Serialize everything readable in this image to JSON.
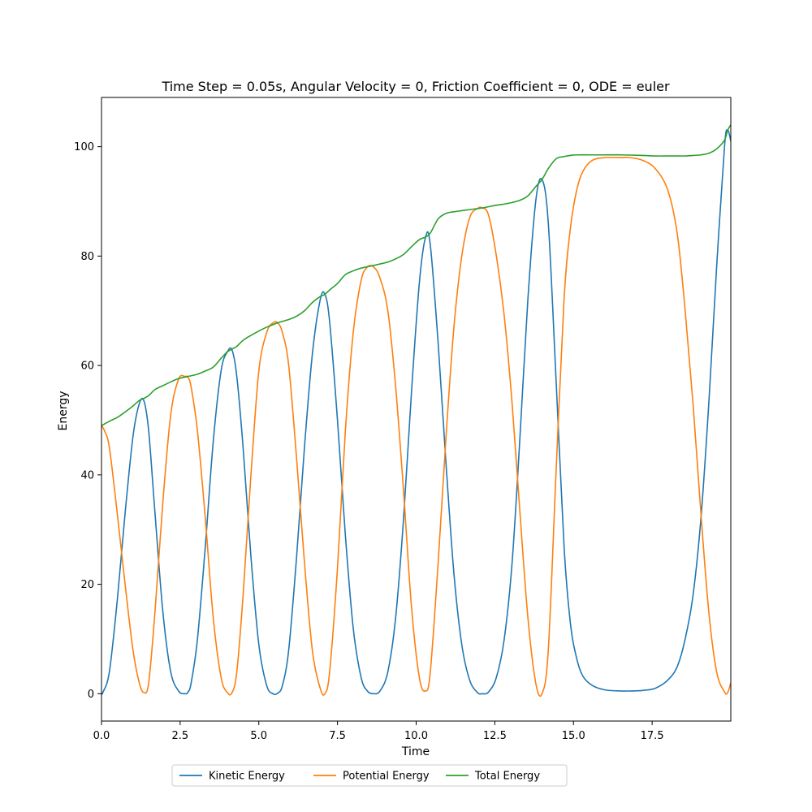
{
  "chart_data": {
    "type": "line",
    "title": "Time Step = 0.05s, Angular Velocity = 0, Friction Coefficient = 0, ODE = euler",
    "xlabel": "Time",
    "ylabel": "Energy",
    "xlim": [
      0,
      20
    ],
    "ylim": [
      -5,
      109
    ],
    "xticks": [
      0.0,
      2.5,
      5.0,
      7.5,
      10.0,
      12.5,
      15.0,
      17.5
    ],
    "xtick_labels": [
      "0.0",
      "2.5",
      "5.0",
      "7.5",
      "10.0",
      "12.5",
      "15.0",
      "17.5"
    ],
    "yticks": [
      0,
      20,
      40,
      60,
      80,
      100
    ],
    "ytick_labels": [
      "0",
      "20",
      "40",
      "60",
      "80",
      "100"
    ],
    "grid": false,
    "legend_position": "bottom-center outside",
    "series": [
      {
        "name": "Kinetic Energy",
        "color": "#1f77b4",
        "x": [
          0.0,
          0.05,
          0.25,
          0.5,
          0.75,
          1.0,
          1.2,
          1.35,
          1.5,
          1.7,
          1.95,
          2.2,
          2.45,
          2.65,
          2.75,
          2.85,
          3.05,
          3.3,
          3.55,
          3.8,
          4.0,
          4.15,
          4.3,
          4.5,
          4.75,
          5.0,
          5.25,
          5.45,
          5.6,
          5.75,
          5.95,
          6.2,
          6.45,
          6.7,
          6.95,
          7.1,
          7.25,
          7.5,
          7.75,
          8.0,
          8.25,
          8.45,
          8.65,
          8.85,
          9.1,
          9.35,
          9.6,
          9.85,
          10.1,
          10.3,
          10.45,
          10.7,
          10.95,
          11.2,
          11.45,
          11.7,
          11.95,
          12.1,
          12.3,
          12.55,
          12.8,
          13.05,
          13.3,
          13.55,
          13.8,
          14.0,
          14.2,
          14.45,
          14.7,
          14.9,
          15.1,
          15.3,
          15.6,
          16.0,
          16.5,
          16.8,
          17.2,
          17.6,
          18.0,
          18.3,
          18.55,
          18.8,
          19.05,
          19.3,
          19.55,
          19.8,
          19.9,
          20.0
        ],
        "y": [
          0,
          0.3,
          4,
          17,
          33,
          47,
          53,
          53.5,
          48,
          33,
          15,
          4,
          0.5,
          0,
          0.3,
          2,
          10,
          27,
          46,
          59,
          62.5,
          62.8,
          58,
          45,
          25,
          9,
          1.5,
          0,
          0.1,
          1.5,
          8,
          25,
          45,
          62,
          72,
          73,
          68,
          50,
          29,
          12,
          3,
          0.5,
          0,
          0.5,
          4,
          14,
          32,
          55,
          75,
          83.5,
          82,
          64,
          42,
          22,
          9,
          2.5,
          0.2,
          0,
          0.3,
          3,
          10,
          24,
          47,
          72,
          90,
          94,
          86,
          57,
          27,
          13,
          6.5,
          3.2,
          1.5,
          0.7,
          0.5,
          0.5,
          0.6,
          1,
          2.5,
          5,
          10,
          18,
          32,
          53,
          78,
          100,
          103,
          101
        ]
      },
      {
        "name": "Potential Energy",
        "color": "#ff7f0e",
        "x": [
          0.0,
          0.1,
          0.25,
          0.5,
          0.75,
          1.0,
          1.2,
          1.35,
          1.5,
          1.7,
          1.95,
          2.2,
          2.45,
          2.65,
          2.75,
          2.85,
          3.05,
          3.3,
          3.55,
          3.8,
          4.0,
          4.15,
          4.3,
          4.5,
          4.75,
          5.0,
          5.25,
          5.45,
          5.6,
          5.75,
          5.95,
          6.2,
          6.45,
          6.7,
          6.95,
          7.1,
          7.25,
          7.5,
          7.75,
          8.0,
          8.25,
          8.45,
          8.65,
          8.85,
          9.1,
          9.35,
          9.6,
          9.85,
          10.1,
          10.3,
          10.45,
          10.7,
          10.95,
          11.2,
          11.45,
          11.7,
          11.95,
          12.1,
          12.3,
          12.55,
          12.8,
          13.05,
          13.3,
          13.55,
          13.8,
          14.0,
          14.2,
          14.45,
          14.7,
          14.9,
          15.1,
          15.3,
          15.6,
          16.0,
          16.5,
          16.8,
          17.2,
          17.6,
          18.0,
          18.3,
          18.55,
          18.8,
          19.05,
          19.3,
          19.55,
          19.8,
          19.9,
          20.0
        ],
        "y": [
          49,
          48,
          45,
          33,
          20,
          8,
          2,
          0.2,
          2,
          15,
          35,
          51,
          57.5,
          58,
          57.8,
          56,
          48,
          32,
          14,
          3,
          0.2,
          0.2,
          4,
          18,
          40,
          59,
          66,
          67.8,
          67.8,
          66,
          60,
          43,
          24,
          8,
          1,
          0,
          4,
          23,
          48,
          66,
          75.5,
          78,
          78,
          76,
          70,
          56,
          37,
          16,
          3,
          0.5,
          4,
          24,
          47,
          67,
          80,
          87,
          88.7,
          88.8,
          87.5,
          80,
          69,
          53,
          33,
          14,
          2,
          0,
          8,
          41,
          72,
          85,
          92,
          95.5,
          97.5,
          98,
          98,
          98,
          97.5,
          96,
          92,
          84,
          70,
          53,
          33,
          15,
          4,
          0.3,
          0.2,
          2
        ]
      },
      {
        "name": "Total Energy",
        "color": "#2ca02c",
        "x": [
          0.0,
          0.25,
          0.5,
          0.75,
          1.0,
          1.2,
          1.35,
          1.5,
          1.7,
          1.95,
          2.2,
          2.45,
          2.75,
          3.05,
          3.3,
          3.55,
          3.8,
          4.0,
          4.15,
          4.3,
          4.5,
          4.75,
          5.0,
          5.25,
          5.6,
          5.95,
          6.2,
          6.45,
          6.7,
          6.95,
          7.1,
          7.25,
          7.5,
          7.75,
          8.0,
          8.25,
          8.65,
          9.1,
          9.35,
          9.6,
          9.85,
          10.1,
          10.3,
          10.45,
          10.7,
          10.95,
          11.2,
          11.45,
          11.7,
          12.1,
          12.55,
          12.8,
          13.05,
          13.3,
          13.55,
          13.8,
          14.0,
          14.2,
          14.45,
          14.7,
          14.9,
          15.1,
          15.6,
          16.0,
          16.5,
          17.2,
          17.6,
          18.0,
          18.3,
          18.55,
          18.8,
          19.05,
          19.3,
          19.55,
          19.8,
          19.9,
          20.0
        ],
        "y": [
          49,
          49.8,
          50.5,
          51.5,
          52.6,
          53.6,
          54,
          54.5,
          55.6,
          56.3,
          57,
          57.6,
          58,
          58.4,
          59,
          59.7,
          61.3,
          62.5,
          63,
          63.5,
          64.6,
          65.5,
          66.3,
          67,
          67.8,
          68.4,
          69,
          70,
          71.5,
          72.6,
          73,
          73.8,
          75,
          76.6,
          77.3,
          77.8,
          78.3,
          78.9,
          79.5,
          80.3,
          81.7,
          83,
          83.5,
          84.2,
          86.8,
          87.8,
          88.1,
          88.3,
          88.5,
          88.8,
          89.3,
          89.5,
          89.8,
          90.2,
          91,
          92.7,
          94,
          96,
          97.8,
          98.2,
          98.4,
          98.5,
          98.5,
          98.5,
          98.5,
          98.4,
          98.3,
          98.3,
          98.3,
          98.3,
          98.4,
          98.5,
          98.8,
          99.6,
          101.2,
          103,
          104
        ]
      }
    ]
  }
}
